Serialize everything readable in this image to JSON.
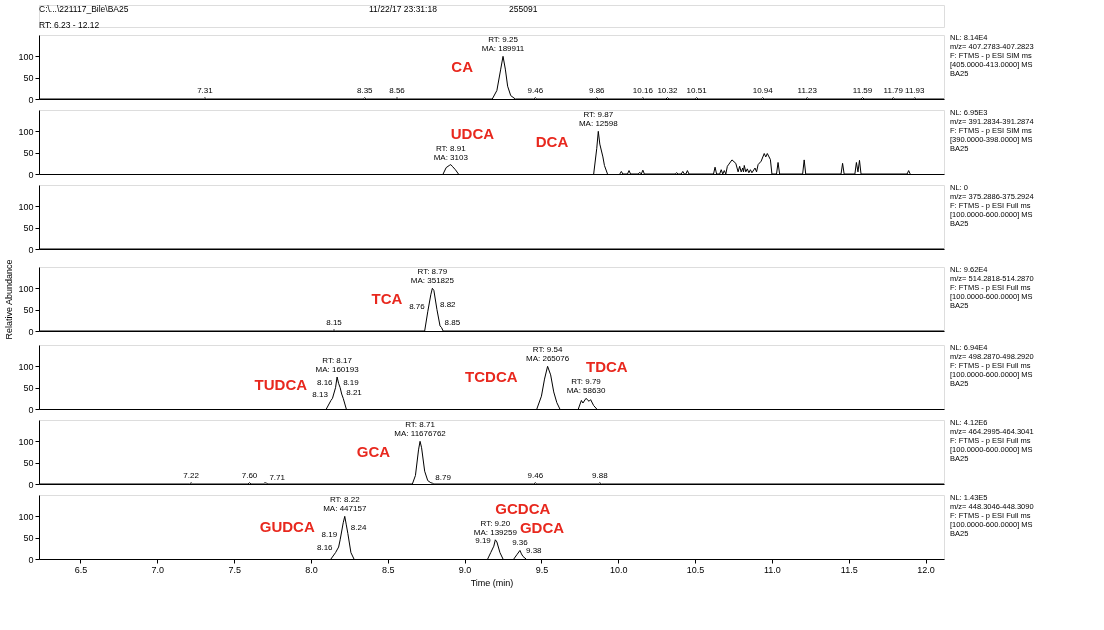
{
  "chart_data": [
    {
      "type": "other",
      "annotations": [
        "C:\\...\\221117_Bile\\BA25",
        "11/22/17 23:31:18",
        "255091",
        "RT: 6.23 - 12.12"
      ]
    },
    {
      "type": "line",
      "xlim": [
        6.23,
        12.12
      ],
      "ylim": [
        0,
        150
      ],
      "yticks": [
        0,
        50,
        100
      ],
      "tick_labels": "y",
      "annotations": [
        "NL: 8.14E4",
        "m/z= 407.2783-407.2823",
        "F: FTMS - p ESI SIM ms",
        "[405.0000-413.0000] MS",
        "BA25",
        {
          "text": "7.31",
          "x": 7.31,
          "y": 3
        },
        {
          "text": "8.35",
          "x": 8.35,
          "y": 3
        },
        {
          "text": "8.56",
          "x": 8.56,
          "y": 3
        },
        {
          "text": "RT: 9.25\nMA: 189911",
          "x": 9.25,
          "y": 100
        },
        {
          "text": "9.46",
          "x": 9.46,
          "y": 3
        },
        {
          "text": "9.86",
          "x": 9.86,
          "y": 3
        },
        {
          "text": "10.16",
          "x": 10.16,
          "y": 3
        },
        {
          "text": "10.32",
          "x": 10.32,
          "y": 3
        },
        {
          "text": "10.51",
          "x": 10.51,
          "y": 3
        },
        {
          "text": "10.94",
          "x": 10.94,
          "y": 3
        },
        {
          "text": "11.23",
          "x": 11.23,
          "y": 3
        },
        {
          "text": "11.59",
          "x": 11.59,
          "y": 3
        },
        {
          "text": "11.79",
          "x": 11.79,
          "y": 3
        },
        {
          "text": "11.93",
          "x": 11.93,
          "y": 3
        }
      ],
      "series": [
        {
          "name": "CA",
          "color": "#000000",
          "x": [
            6.23,
            7.3,
            7.31,
            7.32,
            8.34,
            8.35,
            8.36,
            8.55,
            8.56,
            8.57,
            9.18,
            9.21,
            9.235,
            9.25,
            9.265,
            9.28,
            9.3,
            9.33,
            9.45,
            9.46,
            9.47,
            9.85,
            9.86,
            9.87,
            10.15,
            10.16,
            10.17,
            10.31,
            10.32,
            10.33,
            10.5,
            10.51,
            10.52,
            10.93,
            10.94,
            10.95,
            11.22,
            11.23,
            11.24,
            11.58,
            11.59,
            11.6,
            11.78,
            11.79,
            11.8,
            11.92,
            11.93,
            11.94,
            12.12
          ],
          "values": [
            0,
            0,
            3,
            0,
            0,
            3,
            0,
            0,
            3,
            0,
            0,
            20,
            70,
            100,
            70,
            30,
            8,
            0,
            0,
            3,
            0,
            0,
            3,
            0,
            0,
            3,
            0,
            0,
            3,
            0,
            0,
            3,
            0,
            0,
            3,
            0,
            0,
            3,
            0,
            0,
            3,
            0,
            0,
            3,
            0,
            0,
            3,
            0,
            0
          ]
        }
      ]
    },
    {
      "type": "line",
      "xlim": [
        6.23,
        12.12
      ],
      "ylim": [
        0,
        150
      ],
      "yticks": [
        0,
        50,
        100
      ],
      "tick_labels": "y",
      "annotations": [
        "NL: 6.95E3",
        "m/z= 391.2834-391.2874",
        "F: FTMS - p ESI SIM ms",
        "[390.0000-398.0000] MS",
        "BA25",
        {
          "text": "RT: 8.91\nMA: 3103",
          "x": 8.91,
          "y": 22
        },
        {
          "text": "RT: 9.87\nMA: 12598",
          "x": 9.87,
          "y": 100
        }
      ],
      "series": [
        {
          "name": "UDCA",
          "color": "#000000",
          "x": [
            8.86,
            8.88,
            8.9,
            8.91,
            8.92,
            8.94,
            8.96
          ],
          "values": [
            0,
            15,
            20,
            22,
            18,
            10,
            0
          ]
        },
        {
          "name": "DCA",
          "color": "#000000",
          "x": [
            9.84,
            9.86,
            9.87,
            9.88,
            9.9,
            9.91,
            9.93
          ],
          "values": [
            0,
            60,
            100,
            70,
            40,
            20,
            0
          ]
        },
        {
          "color": "#000000",
          "x": [
            10.01,
            10.02,
            10.03,
            10.06,
            10.07,
            10.08,
            10.13,
            10.14,
            10.15,
            10.16,
            10.17,
            10.37,
            10.38,
            10.39,
            10.41,
            10.42,
            10.43,
            10.44,
            10.45,
            10.46,
            10.62,
            10.63,
            10.64,
            10.66,
            10.67,
            10.68,
            10.69,
            10.7,
            10.71,
            10.72,
            10.74,
            10.765,
            10.78,
            10.79,
            10.8,
            10.81,
            10.815,
            10.82,
            10.83,
            10.84,
            10.85,
            10.86,
            10.87,
            10.89,
            10.9,
            10.91,
            10.93,
            10.95,
            10.96,
            10.97,
            10.99,
            11.0,
            11.03,
            11.04,
            11.05,
            11.2,
            11.21,
            11.22,
            11.45,
            11.46,
            11.47,
            11.54,
            11.55,
            11.56,
            11.57,
            11.58,
            11.88,
            11.89,
            11.9
          ],
          "values": [
            0,
            6,
            0,
            0,
            8,
            0,
            0,
            4,
            0,
            9,
            0,
            0,
            3,
            0,
            0,
            6,
            0,
            0,
            8,
            0,
            0,
            16,
            0,
            0,
            10,
            0,
            8,
            0,
            18,
            23,
            33,
            25,
            5,
            18,
            5,
            14,
            5,
            20,
            5,
            12,
            3,
            10,
            3,
            14,
            5,
            22,
            30,
            48,
            40,
            48,
            34,
            0,
            0,
            27,
            0,
            0,
            33,
            0,
            0,
            25,
            0,
            0,
            27,
            5,
            32,
            0,
            0,
            8,
            0
          ]
        }
      ]
    },
    {
      "type": "line",
      "xlim": [
        6.23,
        12.12
      ],
      "ylim": [
        0,
        150
      ],
      "yticks": [
        0,
        50,
        100
      ],
      "tick_labels": "y",
      "annotations": [
        "NL: 0",
        "m/z= 375.2886-375.2924",
        "F: FTMS - p ESI Full ms",
        "[100.0000-600.0000] MS",
        "BA25"
      ],
      "series": [
        {
          "color": "#000000",
          "x": [
            6.23,
            12.12
          ],
          "values": [
            0,
            0
          ]
        }
      ]
    },
    {
      "type": "line",
      "xlim": [
        6.23,
        12.12
      ],
      "ylim": [
        0,
        150
      ],
      "yticks": [
        0,
        50,
        100
      ],
      "tick_labels": "y",
      "ylabel": "Relative Abundance",
      "annotations": [
        "NL: 9.62E4",
        "m/z= 514.2818-514.2870",
        "F: FTMS - p ESI Full ms",
        "[100.0000-600.0000] MS",
        "BA25",
        {
          "text": "8.15",
          "x": 8.15,
          "y": 3
        },
        {
          "text": "8.76",
          "x": 8.76,
          "y": 45
        },
        {
          "text": "RT: 8.79\nMA: 351825",
          "x": 8.79,
          "y": 100
        },
        {
          "text": "8.82",
          "x": 8.82,
          "y": 50
        },
        {
          "text": "8.85",
          "x": 8.85,
          "y": 8
        }
      ],
      "series": [
        {
          "name": "TCA",
          "color": "#000000",
          "x": [
            6.23,
            8.14,
            8.15,
            8.16,
            8.74,
            8.76,
            8.78,
            8.79,
            8.8,
            8.82,
            8.84,
            8.85,
            8.86,
            12.12
          ],
          "values": [
            0,
            0,
            3,
            0,
            0,
            45,
            85,
            100,
            95,
            50,
            12,
            8,
            0,
            0
          ]
        }
      ]
    },
    {
      "type": "line",
      "xlim": [
        6.23,
        12.12
      ],
      "ylim": [
        0,
        150
      ],
      "yticks": [
        0,
        50,
        100
      ],
      "tick_labels": "y",
      "annotations": [
        "NL: 6.94E4",
        "m/z= 498.2870-498.2920",
        "F: FTMS - p ESI Full ms",
        "[100.0000-600.0000] MS",
        "BA25",
        {
          "text": "8.13",
          "x": 8.13,
          "y": 20
        },
        {
          "text": "8.16",
          "x": 8.16,
          "y": 50
        },
        {
          "text": "RT: 8.17\nMA: 160193",
          "x": 8.17,
          "y": 75
        },
        {
          "text": "8.19",
          "x": 8.19,
          "y": 50
        },
        {
          "text": "8.21",
          "x": 8.21,
          "y": 25
        },
        {
          "text": "RT: 9.54\nMA: 265076",
          "x": 9.54,
          "y": 100
        },
        {
          "text": "RT: 9.79\nMA: 58630",
          "x": 9.79,
          "y": 25
        }
      ],
      "series": [
        {
          "name": "TUDCA",
          "color": "#000000",
          "x": [
            8.1,
            8.13,
            8.14,
            8.16,
            8.17,
            8.18,
            8.19,
            8.2,
            8.21,
            8.23
          ],
          "values": [
            0,
            20,
            25,
            50,
            75,
            60,
            50,
            35,
            25,
            0
          ]
        },
        {
          "name": "TCDCA",
          "color": "#000000",
          "x": [
            9.47,
            9.5,
            9.52,
            9.54,
            9.56,
            9.58,
            9.6,
            9.62
          ],
          "values": [
            0,
            30,
            70,
            100,
            80,
            40,
            15,
            0
          ]
        },
        {
          "name": "TDCA",
          "color": "#000000",
          "x": [
            9.74,
            9.76,
            9.77,
            9.79,
            9.81,
            9.82,
            9.84,
            9.86
          ],
          "values": [
            0,
            20,
            14,
            25,
            18,
            22,
            8,
            0
          ]
        }
      ]
    },
    {
      "type": "line",
      "xlim": [
        6.23,
        12.12
      ],
      "ylim": [
        0,
        150
      ],
      "yticks": [
        0,
        50,
        100
      ],
      "tick_labels": "y",
      "annotations": [
        "NL: 4.12E6",
        "m/z= 464.2995-464.3041",
        "F: FTMS - p ESI Full ms",
        "[100.0000-600.0000] MS",
        "BA25",
        {
          "text": "7.22",
          "x": 7.22,
          "y": 3
        },
        {
          "text": "7.60",
          "x": 7.6,
          "y": 3
        },
        {
          "text": "7.71",
          "x": 7.71,
          "y": 2
        },
        {
          "text": "RT: 8.71\nMA: 11676762",
          "x": 8.71,
          "y": 100
        },
        {
          "text": "8.79",
          "x": 8.79,
          "y": 2
        },
        {
          "text": "9.46",
          "x": 9.46,
          "y": 3
        },
        {
          "text": "9.88",
          "x": 9.88,
          "y": 3
        }
      ],
      "series": [
        {
          "name": "GCA",
          "color": "#000000",
          "x": [
            6.23,
            7.21,
            7.22,
            7.23,
            7.59,
            7.6,
            7.61,
            7.69,
            7.7,
            7.71,
            7.72,
            8.66,
            8.68,
            8.7,
            8.71,
            8.72,
            8.74,
            8.76,
            8.78,
            8.79,
            8.8,
            9.45,
            9.46,
            9.47,
            9.87,
            9.88,
            9.89,
            12.12
          ],
          "values": [
            0,
            0,
            3,
            0,
            0,
            3,
            0,
            0,
            3,
            2,
            0,
            0,
            20,
            80,
            100,
            85,
            30,
            8,
            3,
            2,
            0,
            0,
            3,
            0,
            0,
            3,
            0,
            0
          ]
        }
      ]
    },
    {
      "type": "line",
      "xlim": [
        6.23,
        12.12
      ],
      "ylim": [
        0,
        150
      ],
      "yticks": [
        0,
        50,
        100
      ],
      "xticks": [
        6.5,
        {
          "value": 7,
          "label": "7.0"
        },
        7.5,
        {
          "value": 8,
          "label": "8.0"
        },
        8.5,
        {
          "value": 9,
          "label": "9.0"
        },
        9.5,
        {
          "value": 10,
          "label": "10.0"
        },
        10.5,
        {
          "value": 11,
          "label": "11.0"
        },
        11.5,
        {
          "value": 12,
          "label": "12.0"
        }
      ],
      "xlabel": "Time (min)",
      "annotations": [
        "NL: 1.43E5",
        "m/z= 448.3046-448.3090",
        "F: FTMS - p ESI Full ms",
        "[100.0000-600.0000] MS",
        "BA25",
        {
          "text": "8.16",
          "x": 8.16,
          "y": 15
        },
        {
          "text": "8.19",
          "x": 8.19,
          "y": 45
        },
        {
          "text": "RT: 8.22\nMA: 447157",
          "x": 8.22,
          "y": 100
        },
        {
          "text": "8.24",
          "x": 8.24,
          "y": 60
        },
        {
          "text": "9.19",
          "x": 9.19,
          "y": 30
        },
        {
          "text": "RT: 9.20\nMA: 139259",
          "x": 9.2,
          "y": 45
        },
        {
          "text": "9.36",
          "x": 9.36,
          "y": 20
        },
        {
          "text": "9.38",
          "x": 9.38,
          "y": 6
        }
      ],
      "series": [
        {
          "name": "GUDCA",
          "color": "#000000",
          "x": [
            8.13,
            8.16,
            8.18,
            8.19,
            8.21,
            8.22,
            8.23,
            8.24,
            8.26,
            8.28
          ],
          "values": [
            0,
            15,
            28,
            45,
            85,
            100,
            80,
            60,
            15,
            0
          ]
        },
        {
          "name": "GCDCA",
          "color": "#000000",
          "x": [
            9.15,
            9.17,
            9.19,
            9.2,
            9.21,
            9.23,
            9.25
          ],
          "values": [
            0,
            15,
            30,
            45,
            40,
            15,
            0
          ]
        },
        {
          "name": "GDCA",
          "color": "#000000",
          "x": [
            9.32,
            9.34,
            9.36,
            9.37,
            9.38,
            9.4
          ],
          "values": [
            0,
            10,
            20,
            12,
            6,
            0
          ]
        }
      ]
    }
  ]
}
